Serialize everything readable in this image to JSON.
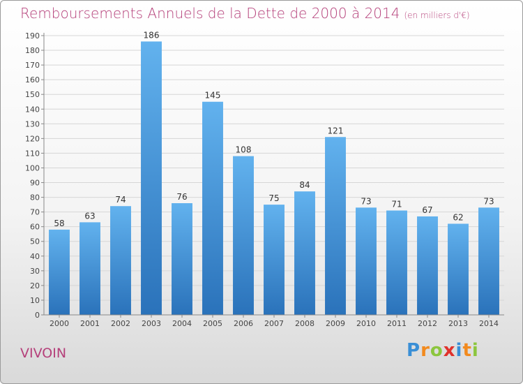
{
  "title": "Remboursements Annuels de la Dette de 2000 à 2014",
  "subtitle": "(en milliers d'€)",
  "commune": "VIVOIN",
  "logo": {
    "text": "Proxiti",
    "letters": [
      {
        "ch": "P",
        "color": "#3a8fd6"
      },
      {
        "ch": "r",
        "color": "#f28a1e"
      },
      {
        "ch": "o",
        "color": "#8cc63e"
      },
      {
        "ch": "x",
        "color": "#e0322b"
      },
      {
        "ch": "i",
        "color": "#3a8fd6"
      },
      {
        "ch": "t",
        "color": "#f28a1e"
      },
      {
        "ch": "i",
        "color": "#8cc63e"
      }
    ]
  },
  "chart_data": {
    "type": "bar",
    "title": "Remboursements Annuels de la Dette de 2000 à 2014",
    "subtitle": "(en milliers d'€)",
    "categories": [
      "2000",
      "2001",
      "2002",
      "2003",
      "2004",
      "2005",
      "2006",
      "2007",
      "2008",
      "2009",
      "2010",
      "2011",
      "2012",
      "2013",
      "2014"
    ],
    "values": [
      58,
      63,
      74,
      186,
      76,
      145,
      108,
      75,
      84,
      121,
      73,
      71,
      67,
      62,
      73
    ],
    "ylim": [
      0,
      190
    ],
    "ytick_step": 10,
    "grid": true,
    "bar_color": "#3d93d8",
    "bar_color_light": "#62b2ee",
    "bar_color_dark": "#2a72ba"
  }
}
